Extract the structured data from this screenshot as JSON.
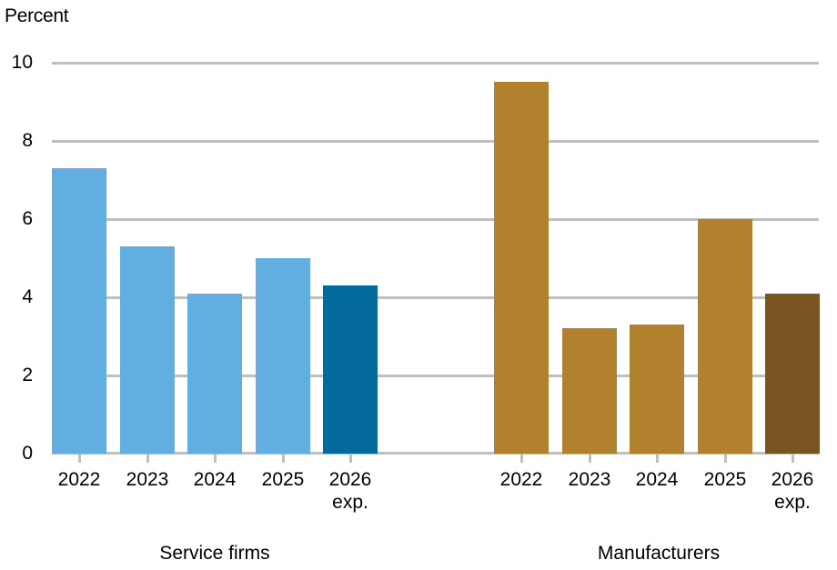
{
  "chart_data": {
    "type": "bar",
    "title": "",
    "ylabel": "Percent",
    "xlabel": "",
    "ylim": [
      0,
      10
    ],
    "yticks": [
      0,
      2,
      4,
      6,
      8,
      10
    ],
    "grid": true,
    "legend": null,
    "groups": [
      {
        "name": "Service firms",
        "categories": [
          "2022",
          "2023",
          "2024",
          "2025",
          "2026 exp."
        ],
        "values": [
          7.3,
          5.3,
          4.1,
          5.0,
          4.3
        ],
        "colors": [
          "#62aee0",
          "#62aee0",
          "#62aee0",
          "#62aee0",
          "#046a9c"
        ]
      },
      {
        "name": "Manufacturers",
        "categories": [
          "2022",
          "2023",
          "2024",
          "2025",
          "2026 exp."
        ],
        "values": [
          9.5,
          3.2,
          3.3,
          6.0,
          4.1
        ],
        "colors": [
          "#b1812d",
          "#b1812d",
          "#b1812d",
          "#b1812d",
          "#7a5523"
        ]
      }
    ]
  },
  "labels": {
    "y_unit": "Percent",
    "yticks": [
      "0",
      "2",
      "4",
      "6",
      "8",
      "10"
    ],
    "service": {
      "group": "Service firms",
      "cats": [
        {
          "line1": "2022",
          "line2": ""
        },
        {
          "line1": "2023",
          "line2": ""
        },
        {
          "line1": "2024",
          "line2": ""
        },
        {
          "line1": "2025",
          "line2": ""
        },
        {
          "line1": "2026",
          "line2": "exp."
        }
      ]
    },
    "manufacturers": {
      "group": "Manufacturers",
      "cats": [
        {
          "line1": "2022",
          "line2": ""
        },
        {
          "line1": "2023",
          "line2": ""
        },
        {
          "line1": "2024",
          "line2": ""
        },
        {
          "line1": "2025",
          "line2": ""
        },
        {
          "line1": "2026",
          "line2": "exp."
        }
      ]
    }
  }
}
